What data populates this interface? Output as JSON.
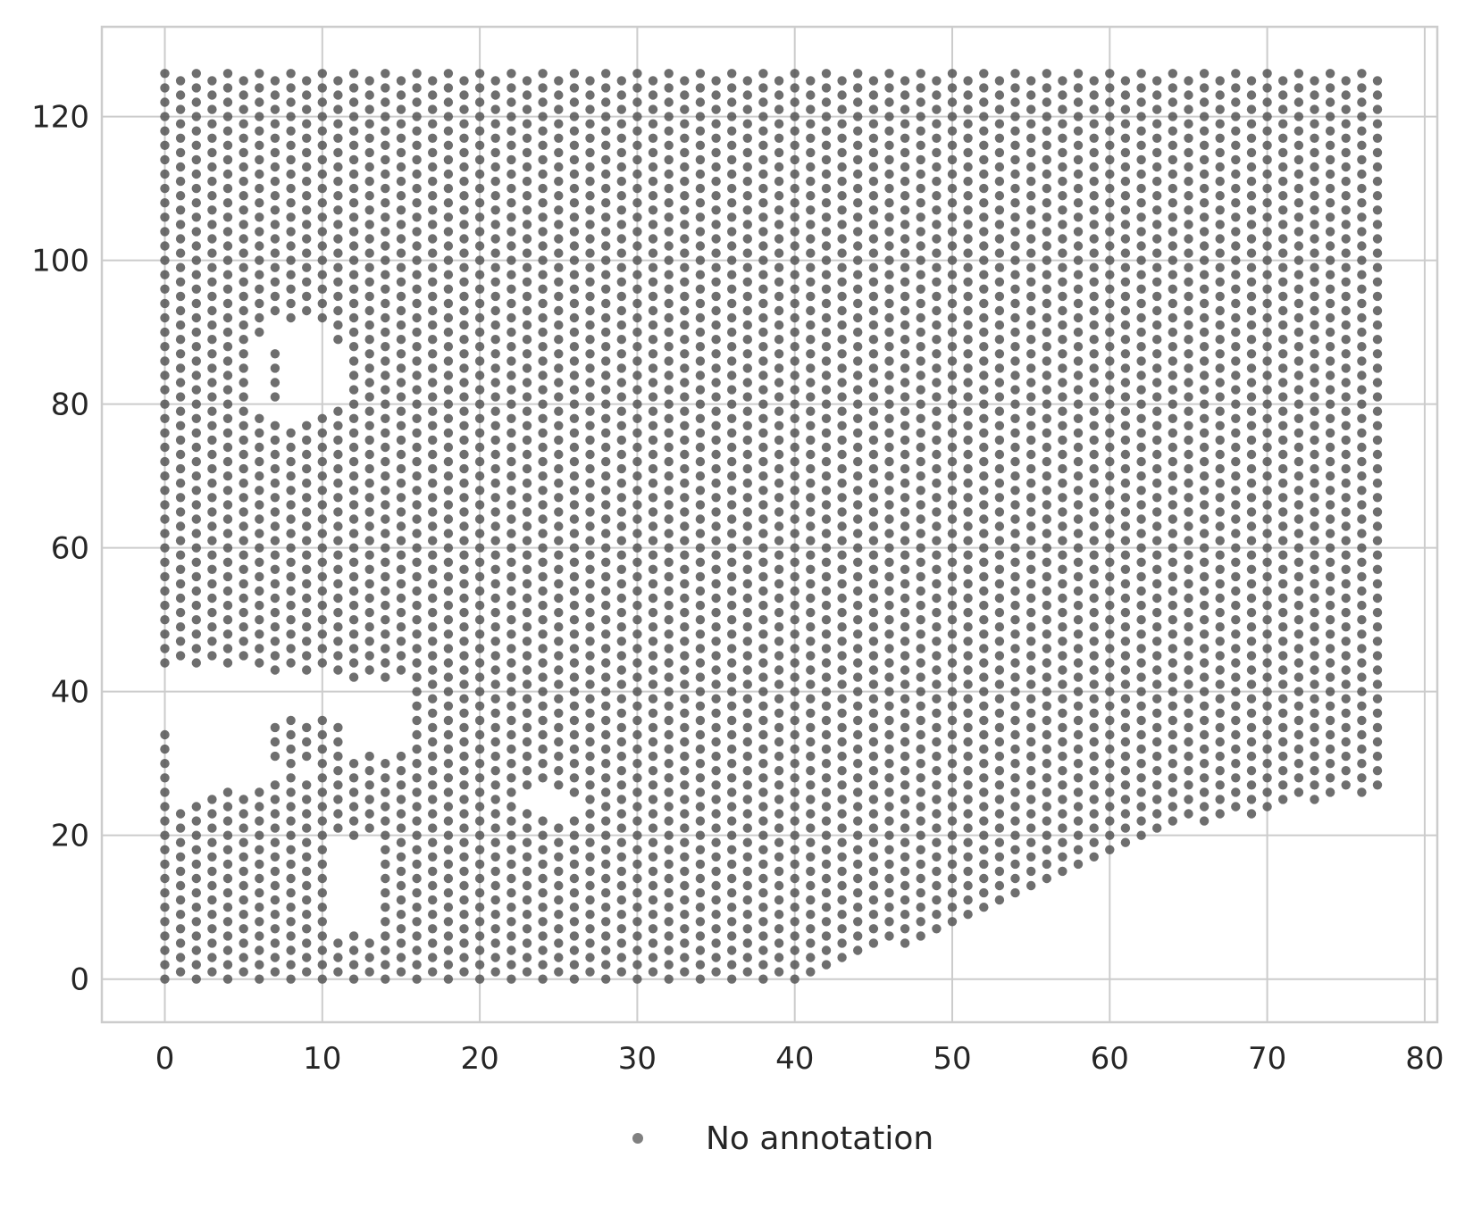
{
  "chart_data": {
    "type": "scatter",
    "title": "",
    "xlabel": "",
    "ylabel": "",
    "xlim": [
      -4,
      80.8
    ],
    "ylim": [
      -6,
      132.5
    ],
    "xticks": [
      0,
      10,
      20,
      30,
      40,
      50,
      60,
      70,
      80
    ],
    "yticks": [
      0,
      20,
      40,
      60,
      80,
      100,
      120
    ],
    "xtick_labels": [
      "0",
      "10",
      "20",
      "30",
      "40",
      "50",
      "60",
      "70",
      "80"
    ],
    "ytick_labels": [
      "0",
      "20",
      "40",
      "60",
      "80",
      "100",
      "120"
    ],
    "grid": true,
    "legend": {
      "placement": "bottom-center",
      "entries": [
        "No annotation"
      ]
    },
    "series": [
      {
        "name": "No annotation",
        "color": "#808080",
        "marker": "circle",
        "description_of_points": "hexagonal spot grid: columns at even x = 0..76, rows at every odd-step y; alternating rows offset by 1 in x; region bounded below by a sloped edge and with gaps near (8,85), (12,12), (5,38), (24,24), (35,15)",
        "grid_x_range": [
          0,
          77
        ],
        "grid_y_range": [
          0,
          126
        ],
        "grid_spacing": 1
      }
    ]
  },
  "legend_label": "No annotation"
}
